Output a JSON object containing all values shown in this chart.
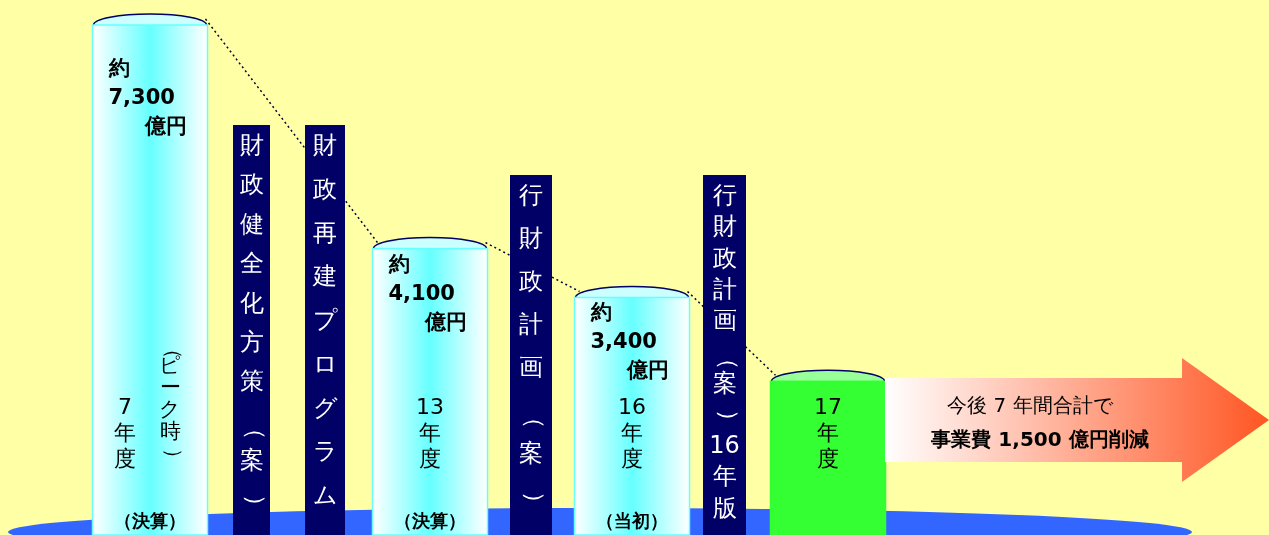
{
  "chart_data": {
    "type": "bar",
    "categories": [
      "7年度",
      "13年度",
      "16年度",
      "17年度"
    ],
    "values": [
      7300,
      4100,
      3400,
      2200
    ],
    "value_labels": [
      "約 7,300 億円",
      "約 4,100 億円",
      "約 3,400 億円",
      null
    ],
    "colors": [
      "#66ffff",
      "#66ffff",
      "#66ffff",
      "#33ff33"
    ],
    "annotations": [
      "（ピーク時）",
      "（決算）",
      "（決算）",
      "（当初）",
      "財政健全化方策（案）",
      "財政再建プログラム",
      "行財政計画（案）",
      "行財政計画（案）16年版",
      "今後 7 年間合計で",
      "事業費 1,500 億円削減"
    ]
  }
}
